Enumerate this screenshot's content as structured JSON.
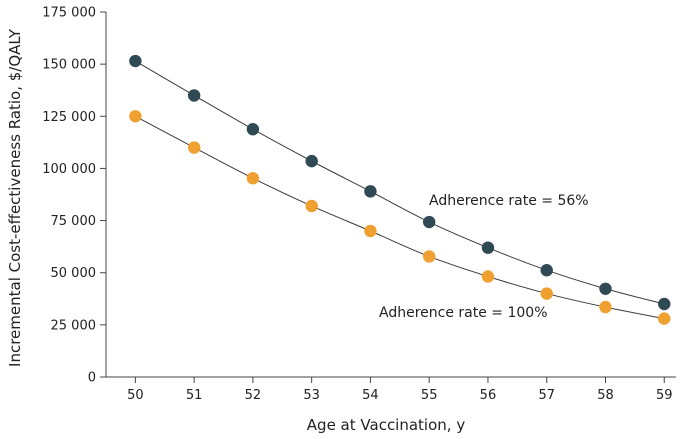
{
  "chart_data": {
    "type": "line",
    "xlabel": "Age at Vaccination, y",
    "ylabel": "Incremental Cost-effectiveness Ratio, $/QALY",
    "x": [
      50,
      51,
      52,
      53,
      54,
      55,
      56,
      57,
      58,
      59
    ],
    "xlim": [
      49.5,
      59.2
    ],
    "ylim": [
      0,
      175000
    ],
    "x_ticks": [
      "50",
      "51",
      "52",
      "53",
      "54",
      "55",
      "56",
      "57",
      "58",
      "59"
    ],
    "y_ticks": [
      "0",
      "25 000",
      "50 000",
      "75 000",
      "100 000",
      "125 000",
      "150 000",
      "175 000"
    ],
    "grid": false,
    "series": [
      {
        "label": "Adherence rate = 56%",
        "color": "#2f4a55",
        "values": [
          151500,
          135000,
          118800,
          103500,
          89000,
          74300,
          62000,
          51200,
          42300,
          35000
        ]
      },
      {
        "label": "Adherence rate = 100%",
        "color": "#f0a030",
        "values": [
          125000,
          110000,
          95300,
          82000,
          70000,
          57800,
          48200,
          40000,
          33500,
          28000
        ]
      }
    ]
  }
}
